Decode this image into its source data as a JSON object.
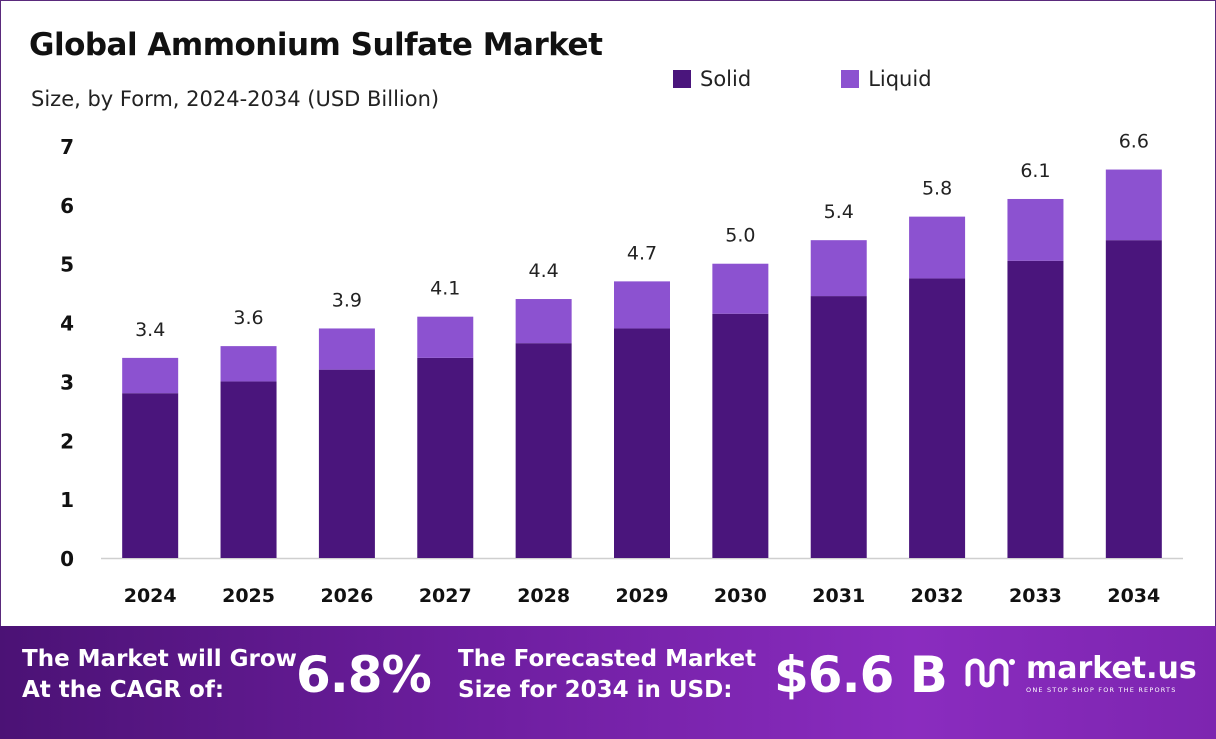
{
  "chart_data": {
    "type": "stacked-bar",
    "title": "Global Ammonium Sulfate Market",
    "subtitle": "Size, by Form, 2024-2034 (USD Billion)",
    "categories": [
      "2024",
      "2025",
      "2026",
      "2027",
      "2028",
      "2029",
      "2030",
      "2031",
      "2032",
      "2033",
      "2034"
    ],
    "series": [
      {
        "name": "Solid",
        "color": "#4a157c",
        "values": [
          2.8,
          3.0,
          3.2,
          3.4,
          3.65,
          3.9,
          4.15,
          4.45,
          4.75,
          5.05,
          5.4
        ]
      },
      {
        "name": "Liquid",
        "color": "#8c52d0",
        "values": [
          0.6,
          0.6,
          0.7,
          0.7,
          0.75,
          0.8,
          0.85,
          0.95,
          1.05,
          1.05,
          1.2
        ]
      }
    ],
    "totals": [
      "3.4",
      "3.6",
      "3.9",
      "4.1",
      "4.4",
      "4.7",
      "5.0",
      "5.4",
      "5.8",
      "6.1",
      "6.6"
    ],
    "yticks": [
      "0",
      "1",
      "2",
      "3",
      "4",
      "5",
      "6",
      "7"
    ],
    "ylim": [
      0,
      7
    ],
    "legend_position": "top-right"
  },
  "footer": {
    "cagr_label_line1": "The Market will Grow",
    "cagr_label_line2": "At the CAGR of:",
    "cagr_value": "6.8%",
    "forecast_label_line1": "The Forecasted Market",
    "forecast_label_line2": "Size for 2034 in USD:",
    "forecast_value": "$6.6 B",
    "brand_name": "market.us",
    "brand_tagline": "ONE STOP SHOP FOR THE REPORTS"
  },
  "colors": {
    "solid": "#4a157c",
    "liquid": "#8c52d0",
    "footer_start": "#4b1275",
    "footer_end": "#8a2cbf"
  }
}
